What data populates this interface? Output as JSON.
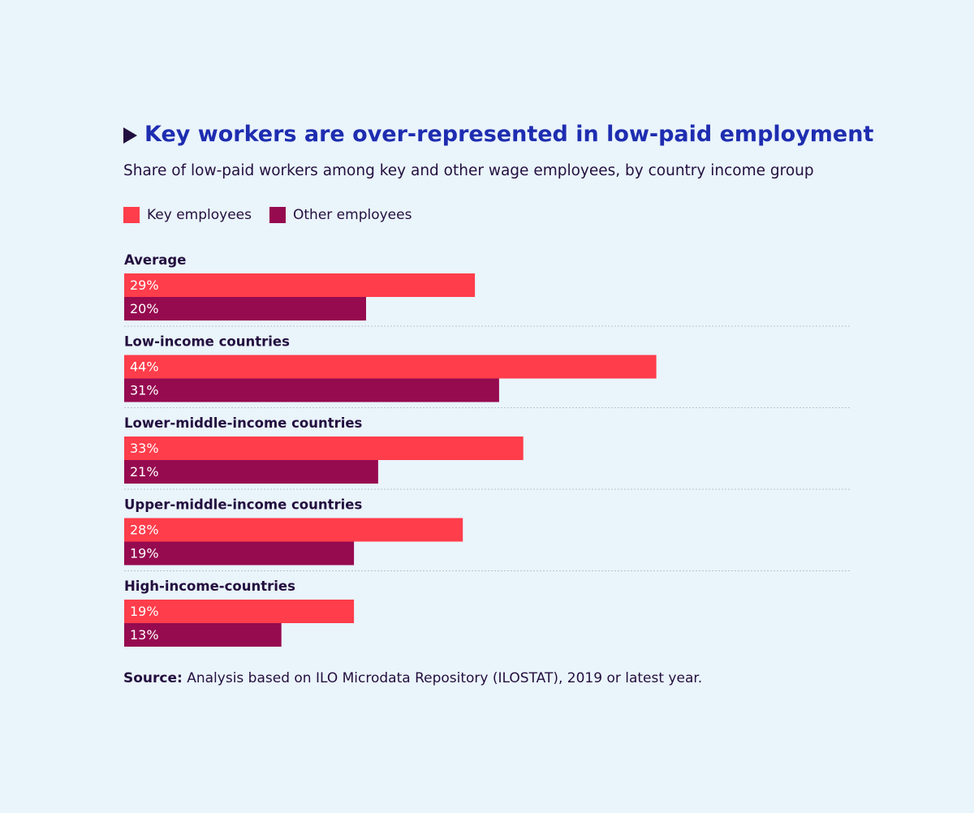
{
  "chart_data": {
    "type": "bar",
    "orientation": "horizontal",
    "title": "Key workers are over-represented in low-paid employment",
    "subtitle": "Share of low-paid workers among key and other wage employees, by country income group",
    "categories": [
      "Average",
      "Low-income countries",
      "Lower-middle-income countries",
      "Upper-middle-income countries",
      "High-income-countries"
    ],
    "series": [
      {
        "name": "Key employees",
        "color": "#ff3d4b",
        "values": [
          29,
          44,
          33,
          28,
          19
        ]
      },
      {
        "name": "Other employees",
        "color": "#960a50",
        "values": [
          20,
          31,
          21,
          19,
          13
        ]
      }
    ],
    "unit": "%",
    "xlim": [
      0,
      60
    ],
    "source_label": "Source:",
    "source_text": "Analysis based on ILO Microdata Repository (ILOSTAT), 2019 or latest year."
  },
  "colors": {
    "background": "#eaf4fb",
    "title": "#1e2db0",
    "text": "#230f3f",
    "divider": "#b9c3cc"
  }
}
